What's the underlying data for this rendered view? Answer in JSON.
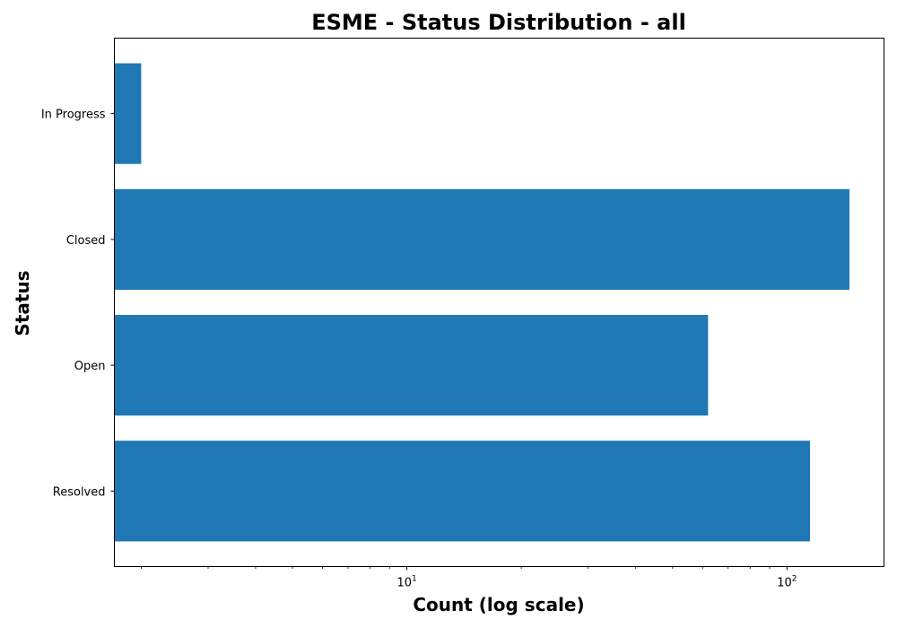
{
  "chart_data": {
    "type": "bar",
    "orientation": "horizontal",
    "title": "ESME - Status Distribution - all",
    "xlabel": "Count (log scale)",
    "ylabel": "Status",
    "x_scale": "log",
    "xlim": [
      1.7,
      180
    ],
    "categories": [
      "In Progress",
      "Closed",
      "Open",
      "Resolved"
    ],
    "values": [
      2,
      146,
      62,
      115
    ],
    "x_major_ticks": [
      {
        "base": "10",
        "exp": "1",
        "value": 10
      },
      {
        "base": "10",
        "exp": "2",
        "value": 100
      }
    ],
    "bar_color": "#1f77b4",
    "grid": false,
    "legend": "none"
  }
}
